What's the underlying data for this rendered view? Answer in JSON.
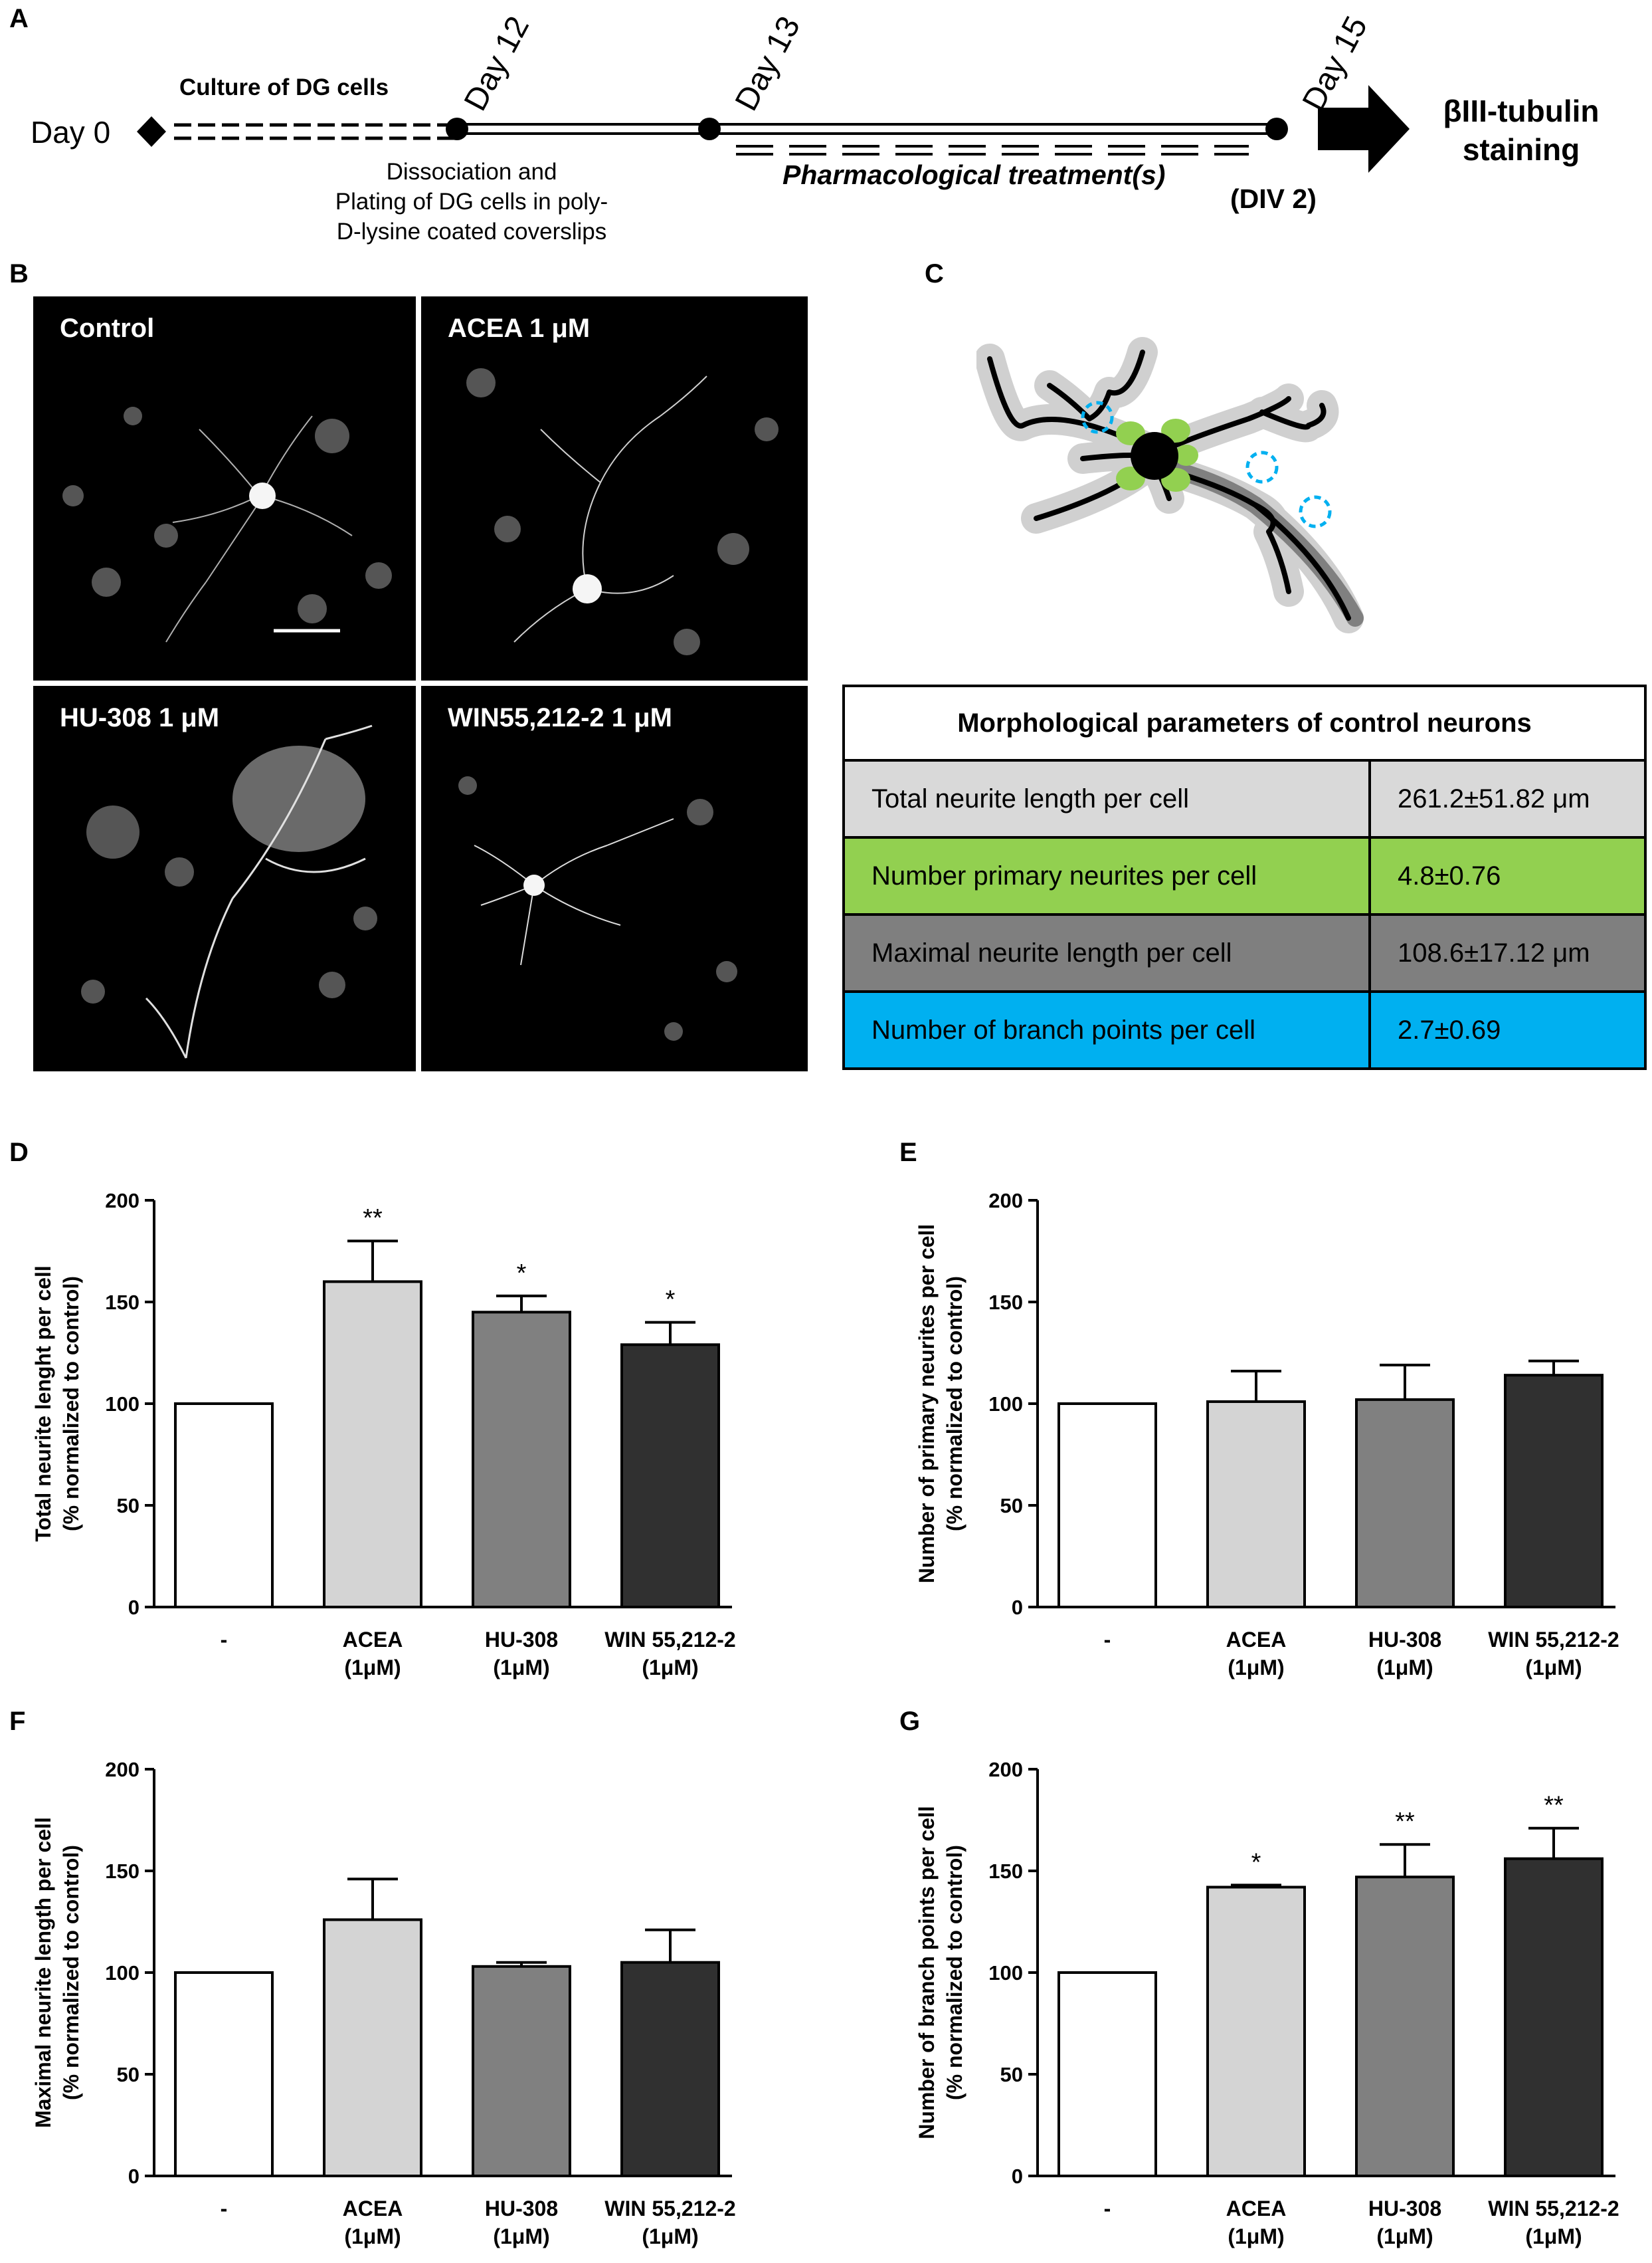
{
  "panels": {
    "a": "A",
    "b": "B",
    "c": "C",
    "d": "D",
    "e": "E",
    "f": "F",
    "g": "G"
  },
  "timeline": {
    "day0": "Day 0",
    "day12": "Day 12",
    "day13": "Day 13",
    "day15": "Day 15",
    "culture": "Culture of DG cells",
    "dissociation_1": "Dissociation and",
    "dissociation_2": "Plating of DG cells in poly-",
    "dissociation_3": "D-lysine coated coverslips",
    "treatment": "Pharmacological treatment(s)",
    "div": "(DIV 2)",
    "staining_1": "βIII-tubulin",
    "staining_2": "staining"
  },
  "micrographs": [
    {
      "label": "Control"
    },
    {
      "label": "ACEA 1 μM"
    },
    {
      "label": "HU-308 1 μM"
    },
    {
      "label": "WIN55,212-2 1 μM"
    }
  ],
  "table": {
    "title": "Morphological parameters of control neurons",
    "rows": [
      {
        "param": "Total neurite length per cell",
        "value": "261.2±51.82 μm",
        "color": "#d9d9d9"
      },
      {
        "param": "Number primary neurites per cell",
        "value": "4.8±0.76",
        "color": "#92d050"
      },
      {
        "param": "Maximal neurite length per cell",
        "value": "108.6±17.12 μm",
        "color": "#7f7f7f"
      },
      {
        "param": "Number of branch points per cell",
        "value": "2.7±0.69",
        "color": "#00b0f0"
      }
    ]
  },
  "schematic_colors": {
    "halo": "#d0d0d0",
    "longest": "#808080",
    "primary": "#92d050",
    "branch": "#00b0f0"
  },
  "chart_data": [
    {
      "panel": "D",
      "type": "bar",
      "ylabel_1": "Total neurite lenght per cell",
      "ylabel_2": "(% normalized to control)",
      "categories": [
        [
          "-",
          ""
        ],
        [
          "ACEA",
          "(1μM)"
        ],
        [
          "HU-308",
          "(1μM)"
        ],
        [
          "WIN 55,212-2",
          "(1μM)"
        ]
      ],
      "values": [
        100,
        160,
        145,
        129
      ],
      "errors": [
        0,
        20,
        8,
        11
      ],
      "significance": [
        "",
        "**",
        "*",
        "*"
      ],
      "colors": [
        "#ffffff",
        "#d4d4d4",
        "#808080",
        "#303030"
      ],
      "ylim": [
        0,
        200
      ],
      "yticks": [
        0,
        50,
        100,
        150,
        200
      ]
    },
    {
      "panel": "E",
      "type": "bar",
      "ylabel_1": "Number of primary neurites per cell",
      "ylabel_2": "(% normalized to control)",
      "categories": [
        [
          "-",
          ""
        ],
        [
          "ACEA",
          "(1μM)"
        ],
        [
          "HU-308",
          "(1μM)"
        ],
        [
          "WIN 55,212-2",
          "(1μM)"
        ]
      ],
      "values": [
        100,
        101,
        102,
        114
      ],
      "errors": [
        0,
        15,
        17,
        7
      ],
      "significance": [
        "",
        "",
        "",
        ""
      ],
      "colors": [
        "#ffffff",
        "#d4d4d4",
        "#808080",
        "#303030"
      ],
      "ylim": [
        0,
        200
      ],
      "yticks": [
        0,
        50,
        100,
        150,
        200
      ]
    },
    {
      "panel": "F",
      "type": "bar",
      "ylabel_1": "Maximal neurite length per cell",
      "ylabel_2": "(% normalized to control)",
      "categories": [
        [
          "-",
          ""
        ],
        [
          "ACEA",
          "(1μM)"
        ],
        [
          "HU-308",
          "(1μM)"
        ],
        [
          "WIN 55,212-2",
          "(1μM)"
        ]
      ],
      "values": [
        100,
        126,
        103,
        105
      ],
      "errors": [
        0,
        20,
        2,
        16
      ],
      "significance": [
        "",
        "",
        "",
        ""
      ],
      "colors": [
        "#ffffff",
        "#d4d4d4",
        "#808080",
        "#303030"
      ],
      "ylim": [
        0,
        200
      ],
      "yticks": [
        0,
        50,
        100,
        150,
        200
      ]
    },
    {
      "panel": "G",
      "type": "bar",
      "ylabel_1": "Number of branch points per cell",
      "ylabel_2": "(% normalized to control)",
      "categories": [
        [
          "-",
          ""
        ],
        [
          "ACEA",
          "(1μM)"
        ],
        [
          "HU-308",
          "(1μM)"
        ],
        [
          "WIN 55,212-2",
          "(1μM)"
        ]
      ],
      "values": [
        100,
        142,
        147,
        156
      ],
      "errors": [
        0,
        1,
        16,
        15
      ],
      "significance": [
        "",
        "*",
        "**",
        "**"
      ],
      "colors": [
        "#ffffff",
        "#d4d4d4",
        "#808080",
        "#303030"
      ],
      "ylim": [
        0,
        200
      ],
      "yticks": [
        0,
        50,
        100,
        150,
        200
      ]
    }
  ]
}
